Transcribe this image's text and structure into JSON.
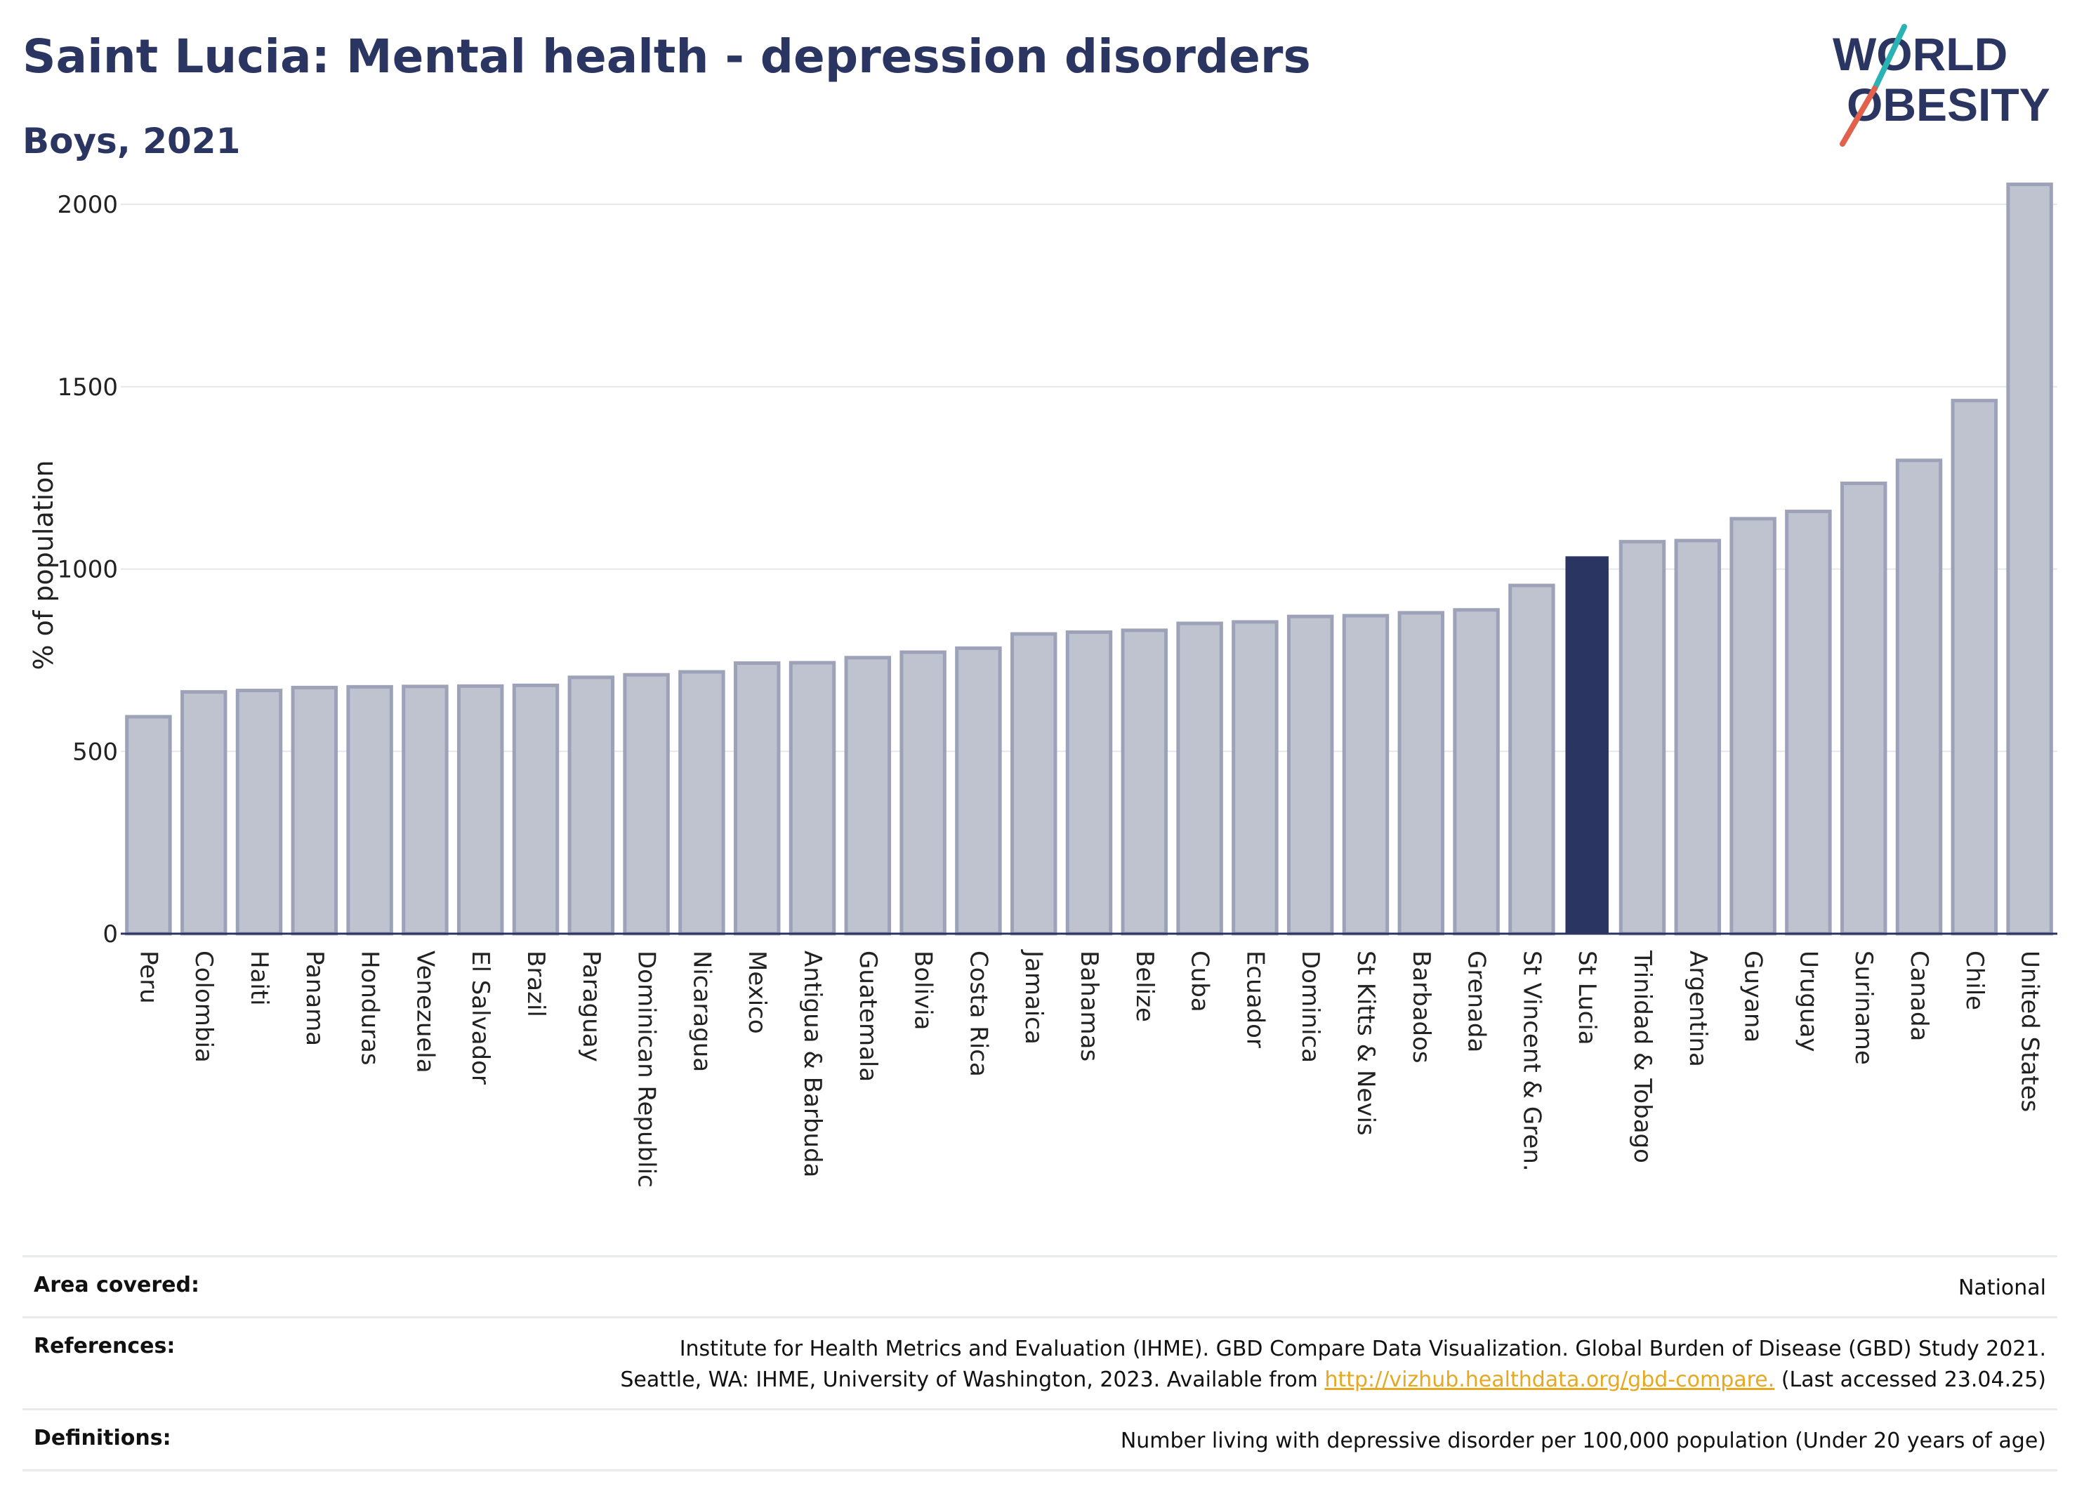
{
  "header": {
    "title": "Saint Lucia: Mental health - depression disorders",
    "subtitle": "Boys, 2021"
  },
  "logo": {
    "line1": "WORLD",
    "line2": "OBESITY",
    "accent_colors": [
      "#2bb3b3",
      "#e2614c"
    ]
  },
  "colors": {
    "highlight": "#2b3562",
    "bar": "#bfc3d0",
    "bar_edge": "#9da2b8",
    "text": "#2b3562",
    "link": "#e5a823"
  },
  "chart_data": {
    "type": "bar",
    "ylabel": "% of population",
    "xlabel": "",
    "ylim": [
      0,
      2060
    ],
    "yticks": [
      0,
      500,
      1000,
      1500,
      2000
    ],
    "grid": true,
    "highlight": "St Lucia",
    "categories": [
      "Peru",
      "Colombia",
      "Haiti",
      "Panama",
      "Honduras",
      "Venezuela",
      "El Salvador",
      "Brazil",
      "Paraguay",
      "Dominican Republic",
      "Nicaragua",
      "Mexico",
      "Antigua & Barbuda",
      "Guatemala",
      "Bolivia",
      "Costa Rica",
      "Jamaica",
      "Bahamas",
      "Belize",
      "Cuba",
      "Ecuador",
      "Dominica",
      "St Kitts & Nevis",
      "Barbados",
      "Grenada",
      "St Vincent & Gren.",
      "St Lucia",
      "Trinidad & Tobago",
      "Argentina",
      "Guyana",
      "Uruguay",
      "Suriname",
      "Canada",
      "Chile",
      "United States"
    ],
    "values": [
      595,
      663,
      667,
      675,
      677,
      678,
      679,
      681,
      703,
      710,
      718,
      742,
      743,
      757,
      772,
      783,
      822,
      827,
      832,
      851,
      855,
      870,
      872,
      880,
      888,
      955,
      1035,
      1075,
      1078,
      1138,
      1158,
      1235,
      1298,
      1462,
      2055
    ]
  },
  "footer": {
    "area_label": "Area covered:",
    "area_value": "National",
    "references_label": "References:",
    "references_line1": "Institute for Health Metrics and Evaluation (IHME). GBD Compare Data Visualization. Global Burden of Disease (GBD) Study 2021.",
    "references_line2_pre": "Seattle, WA: IHME, University of Washington, 2023. Available from ",
    "references_link": "http://vizhub.healthdata.org/gbd-compare.",
    "references_line2_post": " (Last accessed 23.04.25)",
    "definitions_label": "Definitions:",
    "definitions_value": "Number living with depressive disorder per 100,000 population (Under 20 years of age)"
  }
}
